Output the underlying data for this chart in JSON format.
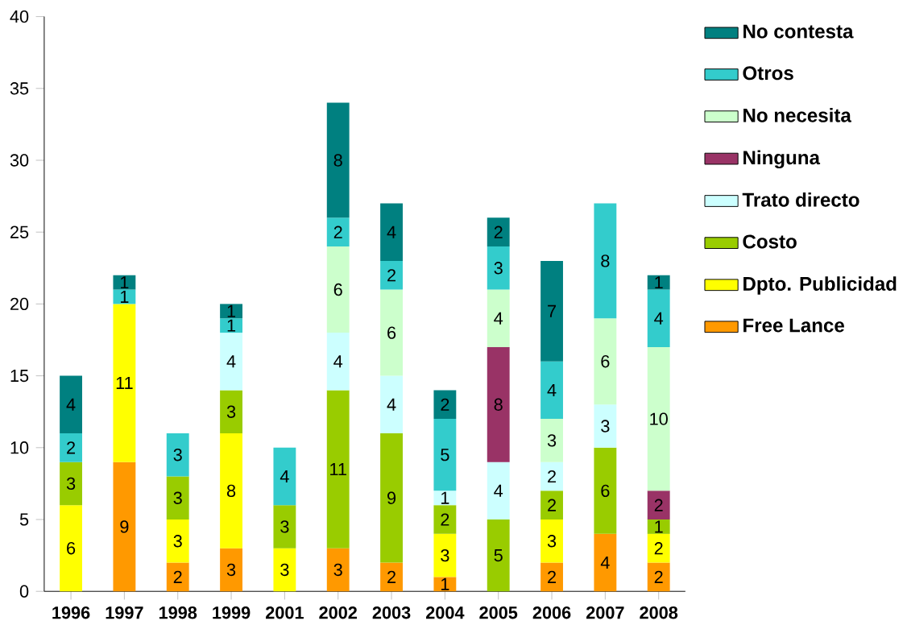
{
  "chart_data": {
    "type": "bar",
    "stacked": true,
    "data_labels": true,
    "legend": "right",
    "grid": false,
    "categories": [
      "1996",
      "1997",
      "1998",
      "1999",
      "2001",
      "2002",
      "2003",
      "2004",
      "2005",
      "2006",
      "2007",
      "2008"
    ],
    "ylim": [
      0,
      40
    ],
    "yticks": [
      0,
      5,
      10,
      15,
      20,
      25,
      30,
      35,
      40
    ],
    "series": [
      {
        "name": "Free Lance",
        "color": "#ff9900",
        "values": [
          null,
          9,
          2,
          3,
          null,
          3,
          2,
          1,
          null,
          2,
          4,
          2
        ]
      },
      {
        "name": "Dpto. Publicidad",
        "color": "#ffff00",
        "values": [
          6,
          11,
          3,
          8,
          3,
          null,
          null,
          3,
          null,
          3,
          null,
          2
        ]
      },
      {
        "name": "Costo",
        "color": "#99cc00",
        "values": [
          3,
          null,
          3,
          3,
          3,
          11,
          9,
          2,
          5,
          2,
          6,
          1
        ]
      },
      {
        "name": "Trato directo",
        "color": "#ccffff",
        "values": [
          null,
          null,
          null,
          4,
          null,
          4,
          4,
          1,
          4,
          2,
          3,
          null
        ]
      },
      {
        "name": "Ninguna",
        "color": "#993366",
        "values": [
          null,
          null,
          null,
          null,
          null,
          null,
          null,
          null,
          8,
          null,
          null,
          2
        ]
      },
      {
        "name": "No necesita",
        "color": "#ccffcc",
        "values": [
          null,
          null,
          null,
          null,
          null,
          6,
          6,
          null,
          4,
          3,
          6,
          10
        ]
      },
      {
        "name": "Otros",
        "color": "#33cccc",
        "values": [
          2,
          1,
          3,
          1,
          4,
          2,
          2,
          5,
          3,
          4,
          8,
          4
        ]
      },
      {
        "name": "No contesta",
        "color": "#008080",
        "values": [
          4,
          1,
          null,
          1,
          null,
          8,
          4,
          2,
          2,
          7,
          null,
          1
        ]
      }
    ]
  }
}
